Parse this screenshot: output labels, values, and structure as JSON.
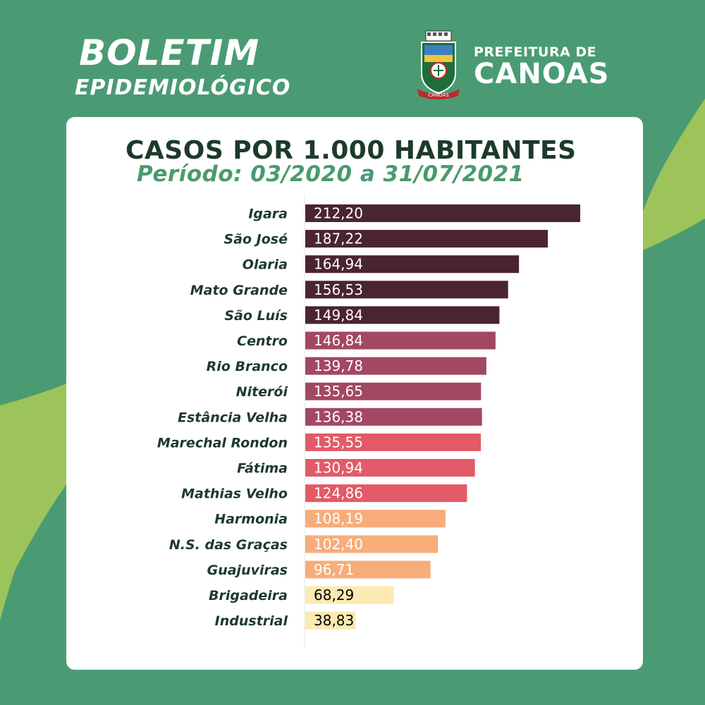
{
  "header": {
    "title_line1": "BOLETIM",
    "title_line2": "EPIDEMIOLÓGICO"
  },
  "logo": {
    "line1": "PREFEITURA DE",
    "line2": "CANOAS",
    "crest_text": "CANOAS"
  },
  "colors": {
    "background": "#4a9b73",
    "accent_green": "#9dc45a",
    "title_dark": "#1d3a2b",
    "subtitle_green": "#4b9a6e"
  },
  "chart_data": {
    "type": "bar",
    "orientation": "horizontal",
    "title": "CASOS POR 1.000 HABITANTES",
    "subtitle": "Período: 03/2020 a 31/07/2021",
    "xlabel": "",
    "ylabel": "",
    "grid": false,
    "categories": [
      "Igara",
      "São José",
      "Olaria",
      "Mato Grande",
      "São Luís",
      "Centro",
      "Rio Branco",
      "Niterói",
      "Estância Velha",
      "Marechal Rondon",
      "Fátima",
      "Mathias Velho",
      "Harmonia",
      "N.S. das Graças",
      "Guajuviras",
      "Brigadeira",
      "Industrial"
    ],
    "values": [
      212.2,
      187.22,
      164.94,
      156.53,
      149.84,
      146.84,
      139.78,
      135.65,
      136.38,
      135.55,
      130.94,
      124.86,
      108.19,
      102.4,
      96.71,
      68.29,
      38.83
    ],
    "value_labels": [
      "212,20",
      "187,22",
      "164,94",
      "156,53",
      "149,84",
      "146,84",
      "139,78",
      "135,65",
      "136,38",
      "135,55",
      "130,94",
      "124,86",
      "108,19",
      "102,40",
      "96,71",
      "68,29",
      "38,83"
    ],
    "bar_colors": [
      "#4a2432",
      "#4a2432",
      "#4a2432",
      "#4a2432",
      "#4a2432",
      "#a24862",
      "#a24862",
      "#a24862",
      "#a24862",
      "#e35a68",
      "#e35a68",
      "#e35a68",
      "#f7ad7a",
      "#f7ad7a",
      "#f7ad7a",
      "#fbe9b2",
      "#fbe9b2"
    ],
    "value_text_colors": [
      "#ffffff",
      "#ffffff",
      "#ffffff",
      "#ffffff",
      "#ffffff",
      "#ffffff",
      "#ffffff",
      "#ffffff",
      "#ffffff",
      "#ffffff",
      "#ffffff",
      "#ffffff",
      "#ffffff",
      "#ffffff",
      "#ffffff",
      "#000000",
      "#000000"
    ]
  }
}
